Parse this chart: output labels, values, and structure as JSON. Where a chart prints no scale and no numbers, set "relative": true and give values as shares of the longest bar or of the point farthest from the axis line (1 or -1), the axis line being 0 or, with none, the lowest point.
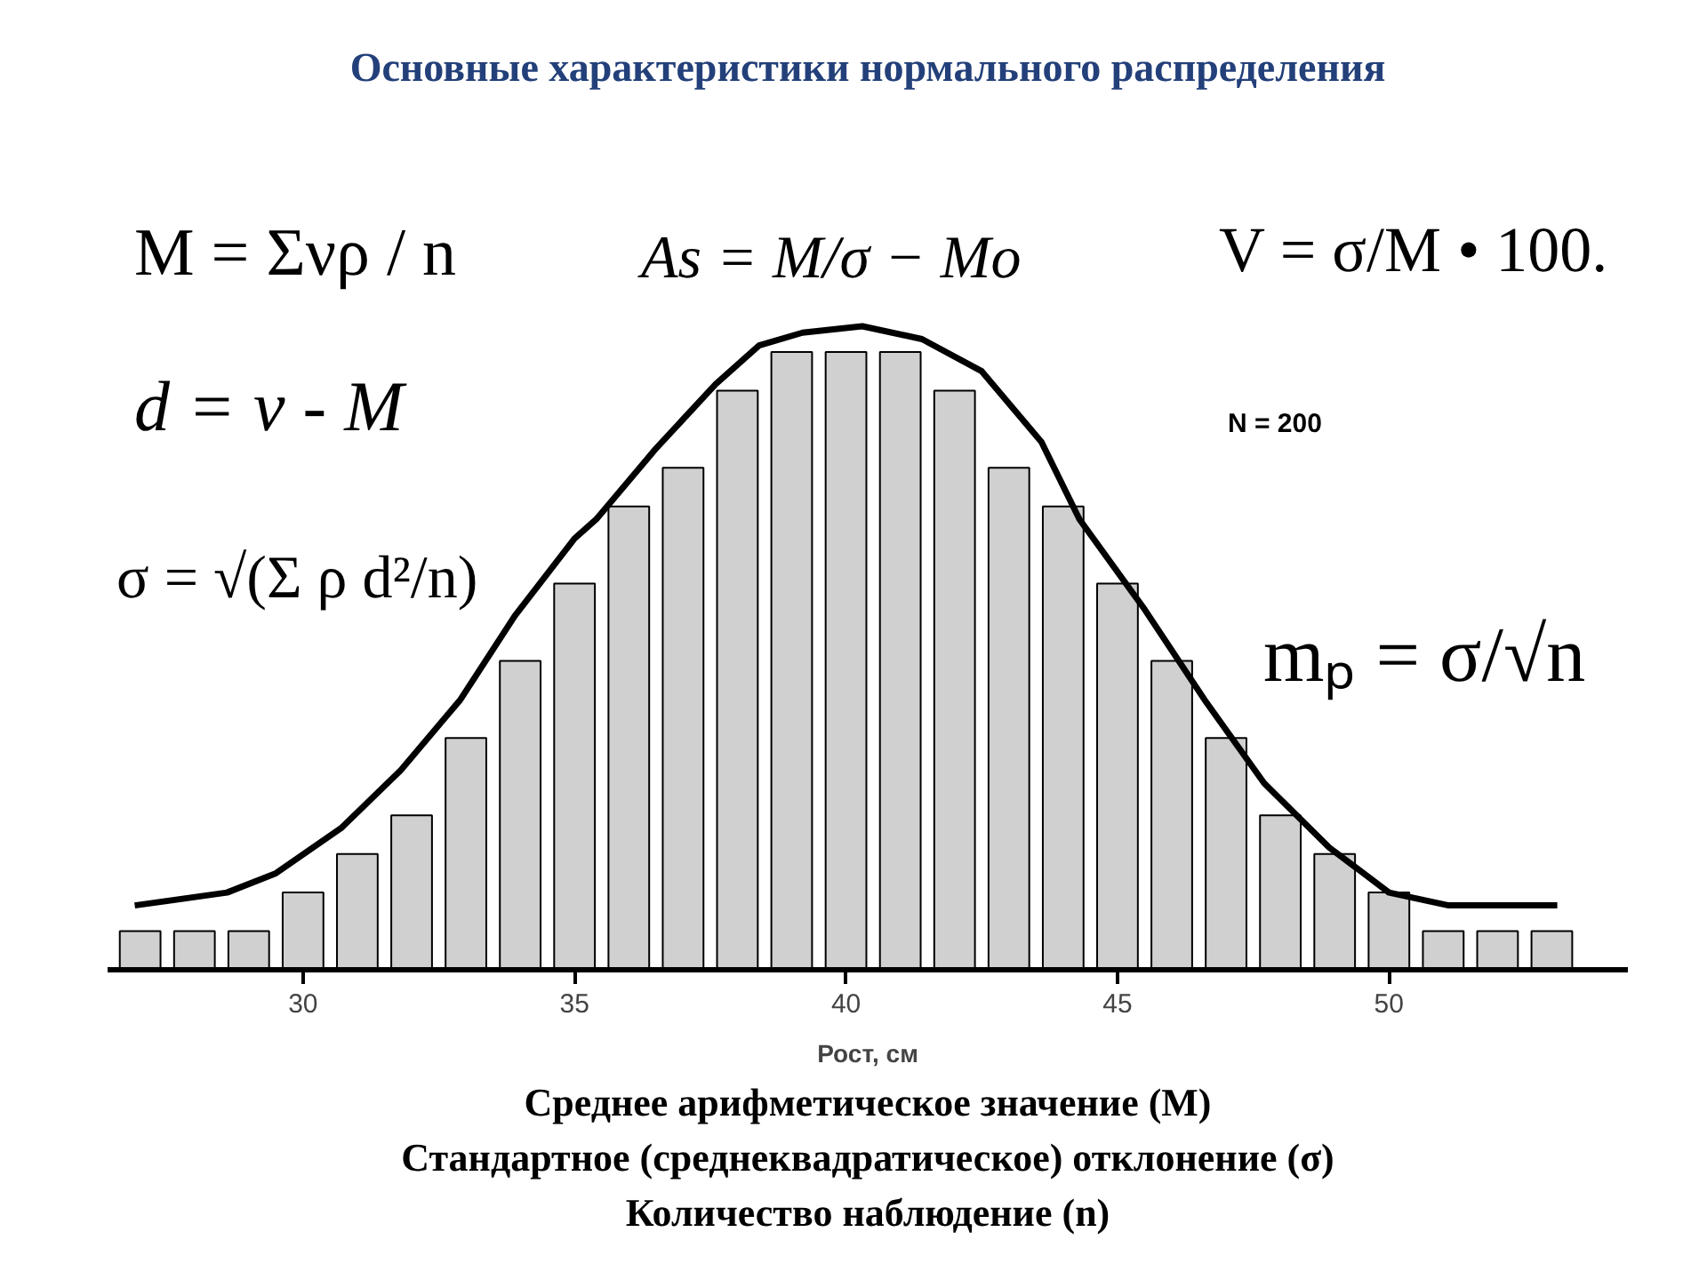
{
  "chart_data": {
    "type": "bar",
    "title": "Основные характеристики нормального распределения",
    "xlabel": "Рост, см",
    "relative": true,
    "x": [
      27,
      28,
      29,
      30,
      31,
      32,
      33,
      34,
      35,
      36,
      37,
      38,
      39,
      40,
      41,
      42,
      43,
      44,
      45,
      46,
      47,
      48,
      49,
      50,
      51,
      52,
      53
    ],
    "series": [
      {
        "color": "#d0d0d0",
        "values": [
          0.06,
          0.06,
          0.06,
          0.12,
          0.18,
          0.24,
          0.36,
          0.48,
          0.6,
          0.72,
          0.78,
          0.9,
          0.96,
          0.96,
          0.96,
          0.9,
          0.78,
          0.72,
          0.6,
          0.48,
          0.36,
          0.24,
          0.18,
          0.12,
          0.06,
          0.06,
          0.06
        ]
      },
      {
        "type": "line",
        "color": "#000000",
        "x": [
          26.9,
          28.6,
          29.5,
          30.7,
          31.8,
          32.9,
          33.9,
          35,
          35.4,
          36.5,
          37.6,
          38.4,
          39.2,
          40.3,
          41.4,
          42.5,
          43.6,
          44.3,
          45.5,
          46.6,
          47.7,
          48.9,
          50,
          51.1,
          53.1
        ],
        "values": [
          0.1,
          0.12,
          0.15,
          0.22,
          0.31,
          0.42,
          0.55,
          0.67,
          0.7,
          0.81,
          0.91,
          0.97,
          0.99,
          1.0,
          0.98,
          0.93,
          0.82,
          0.7,
          0.56,
          0.42,
          0.29,
          0.19,
          0.12,
          0.1,
          0.1
        ]
      }
    ],
    "xlim": [
      26.4,
      54.4
    ],
    "xticks": [
      30,
      35,
      40,
      45,
      50
    ],
    "grid": false,
    "annotations": [
      "M = Σνρ / n",
      "As = M/σ − Mo",
      "V = σ/M • 100.",
      "d = ν - M",
      "σ = √(Σ ρ d²/n)",
      "N = 200",
      "mₚ = σ/√n",
      "Среднее арифметическое значение (M)",
      "Стандартное (среднеквадратическое) отклонение (σ)",
      "Количество наблюдение (n)"
    ]
  }
}
